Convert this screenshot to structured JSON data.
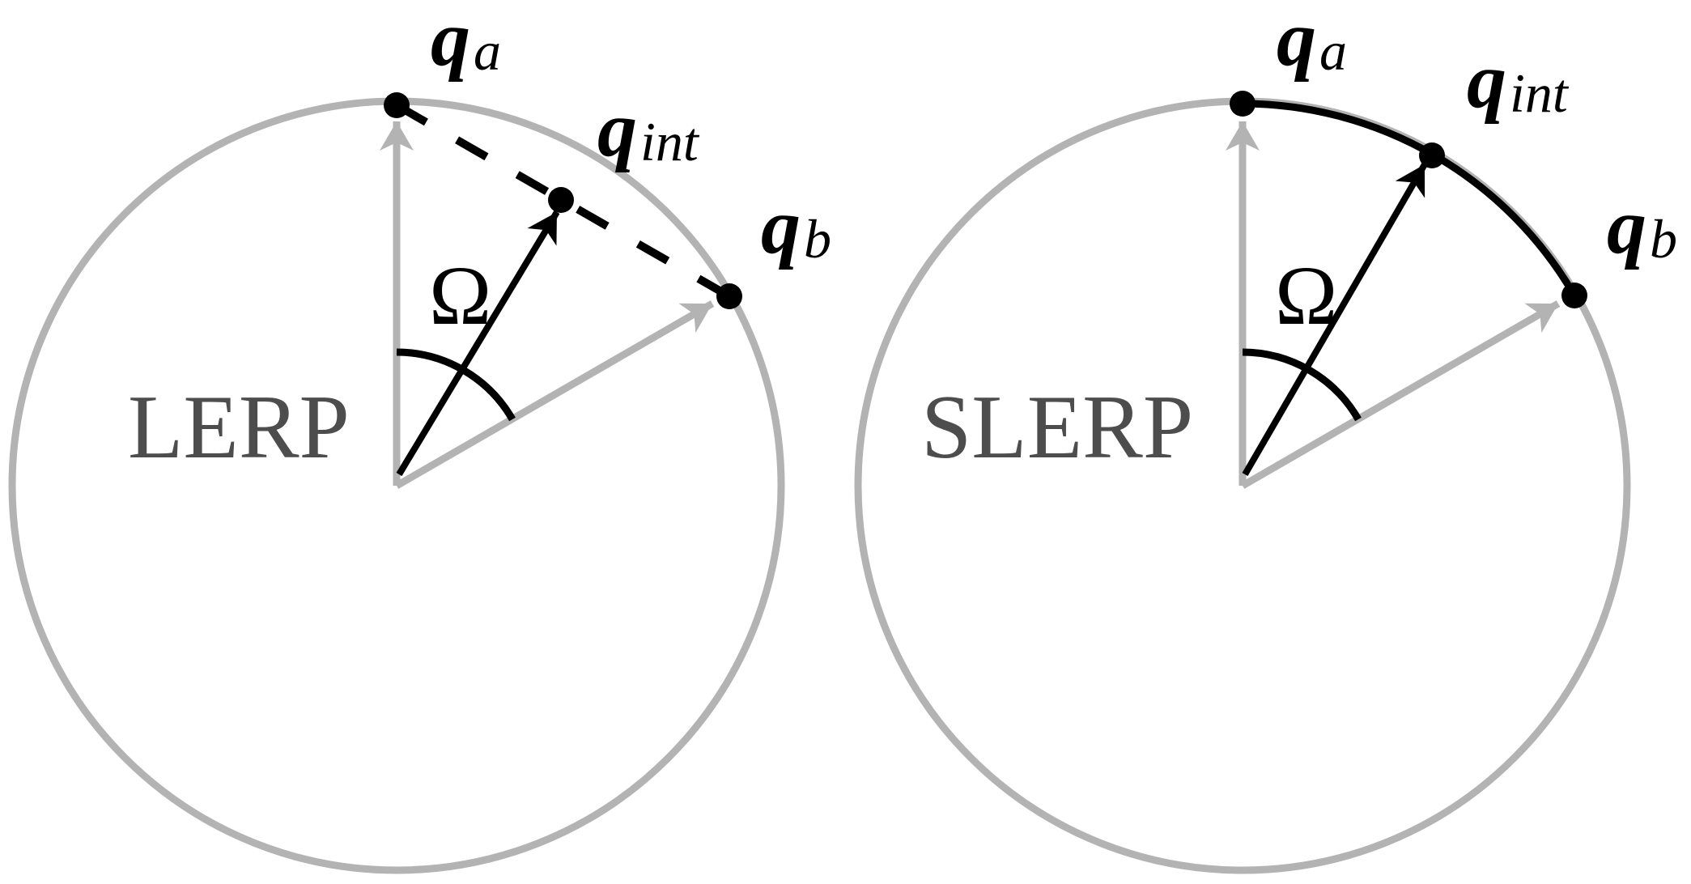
{
  "panels": [
    {
      "method": "LERP",
      "angle_label": "Ω",
      "points": {
        "qa": {
          "symbol": "q",
          "subscript": "a"
        },
        "qint": {
          "symbol": "q",
          "subscript": "int"
        },
        "qb": {
          "symbol": "q",
          "subscript": "b"
        }
      },
      "path_style": "dashed-chord"
    },
    {
      "method": "SLERP",
      "angle_label": "Ω",
      "points": {
        "qa": {
          "symbol": "q",
          "subscript": "a"
        },
        "qint": {
          "symbol": "q",
          "subscript": "int"
        },
        "qb": {
          "symbol": "q",
          "subscript": "b"
        }
      },
      "path_style": "solid-arc"
    }
  ],
  "colors": {
    "circle": "#b3b3b3",
    "gray_vector": "#b3b3b3",
    "black": "#000000",
    "method_text": "#4d4d4d"
  }
}
